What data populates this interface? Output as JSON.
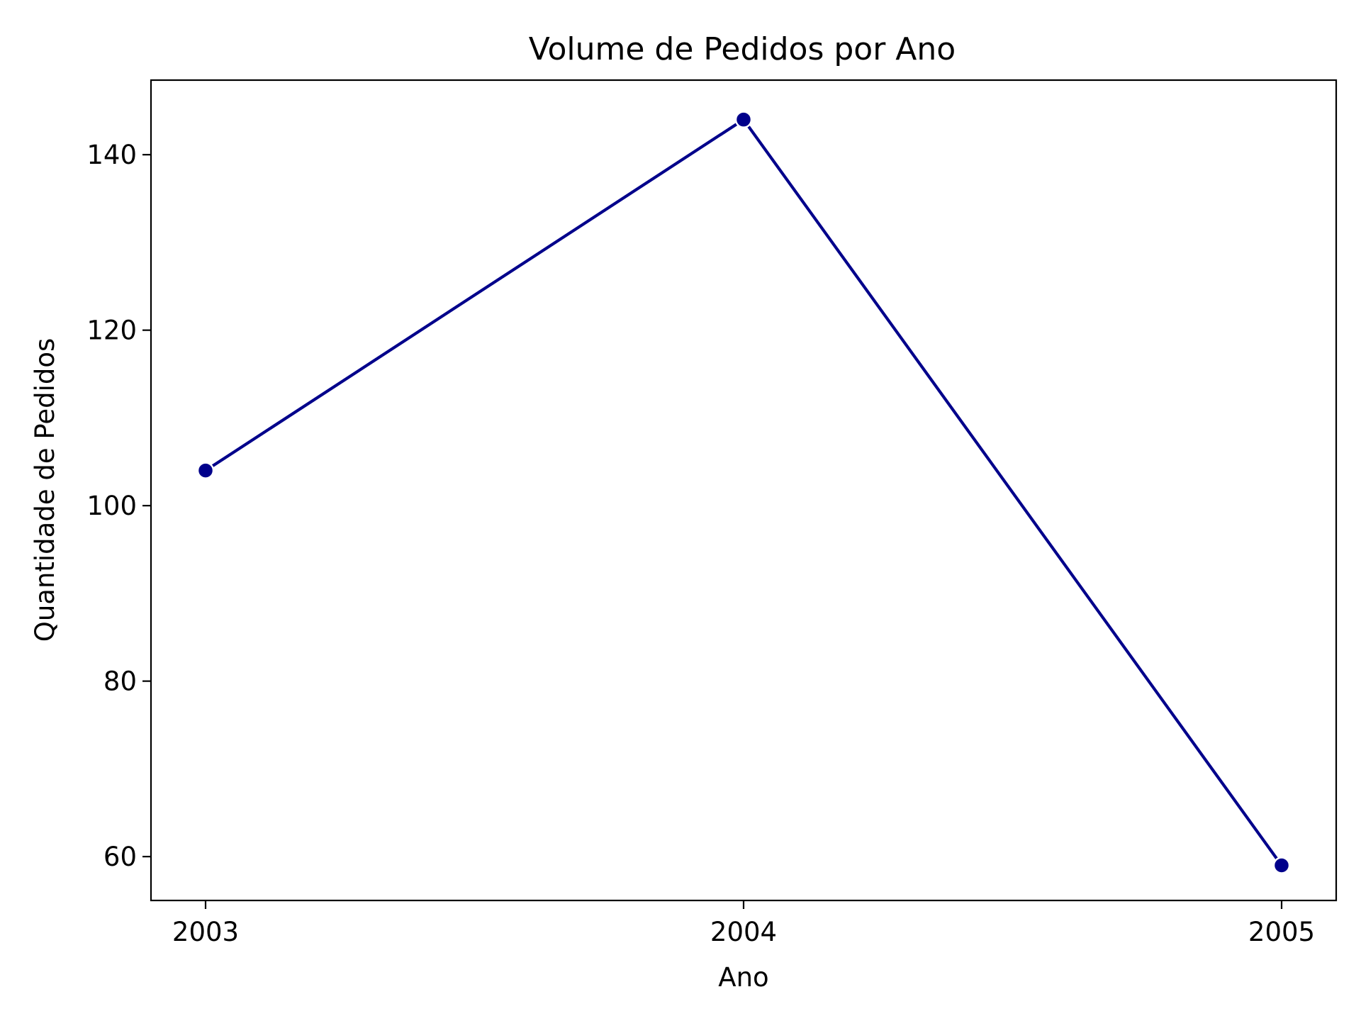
{
  "chart_data": {
    "type": "line",
    "title": "Volume de Pedidos por Ano",
    "xlabel": "Ano",
    "ylabel": "Quantidade de Pedidos",
    "categories": [
      "2003",
      "2004",
      "2005"
    ],
    "series": [
      {
        "values": [
          104,
          144,
          59
        ]
      }
    ],
    "ylim": [
      55,
      148.5
    ],
    "y_ticks": [
      60,
      80,
      100,
      120,
      140
    ],
    "grid": false,
    "legend": "none",
    "line_color": "#00008b",
    "marker": "circle"
  }
}
